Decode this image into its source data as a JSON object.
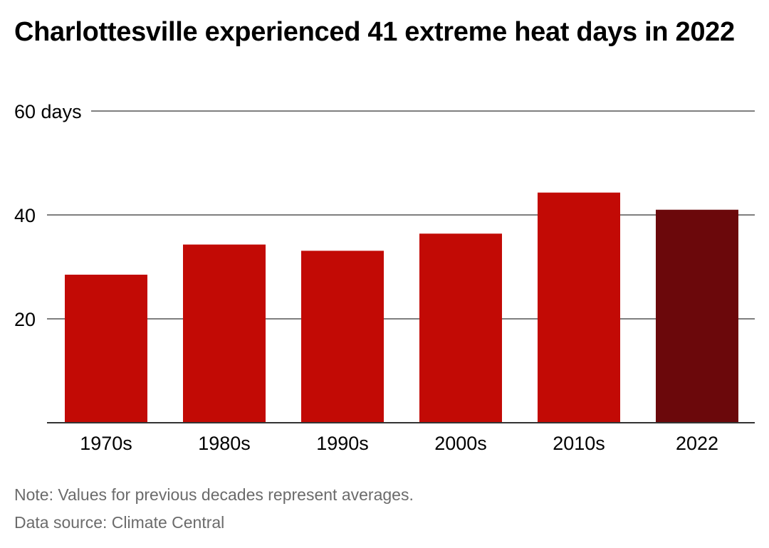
{
  "chart_data": {
    "type": "bar",
    "title": "Charlottesville experienced 41 extreme heat days in 2022",
    "categories": [
      "1970s",
      "1980s",
      "1990s",
      "2000s",
      "2010s",
      "2022"
    ],
    "values": [
      28.5,
      34.3,
      33.1,
      36.4,
      44.3,
      41.0
    ],
    "y_ticks": [
      {
        "value": 20,
        "label": "20"
      },
      {
        "value": 40,
        "label": "40"
      },
      {
        "value": 60,
        "label": "60 days"
      }
    ],
    "ylim": [
      0,
      60
    ],
    "xlabel": "",
    "ylabel": "",
    "grid": true,
    "colors": {
      "bar": "#c20a05",
      "highlight": "#6b080b"
    },
    "highlight_category": "2022"
  },
  "footer": {
    "note": "Note: Values for previous decades represent averages.",
    "source": "Data source: Climate Central"
  }
}
